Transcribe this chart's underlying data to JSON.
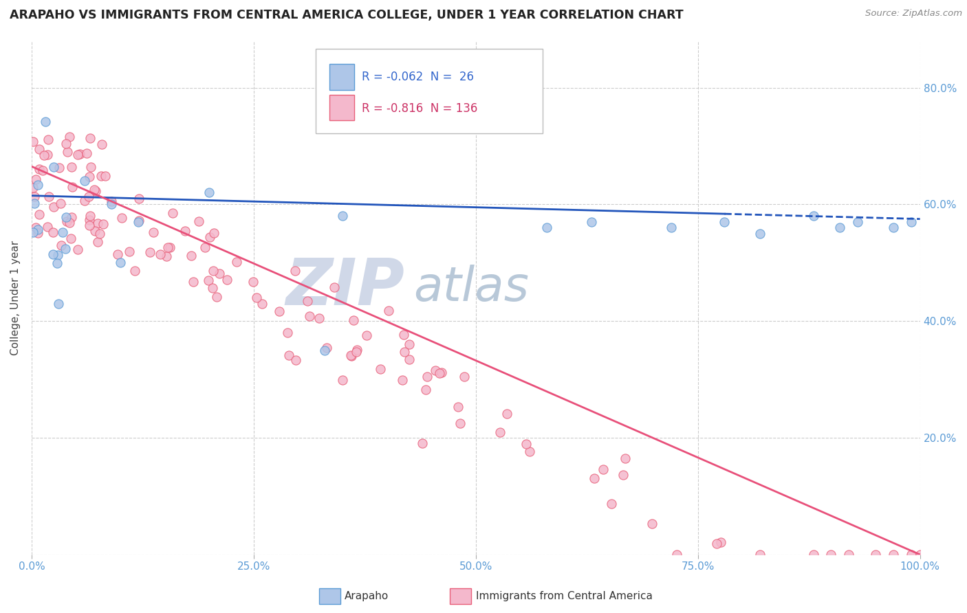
{
  "title": "ARAPAHO VS IMMIGRANTS FROM CENTRAL AMERICA COLLEGE, UNDER 1 YEAR CORRELATION CHART",
  "source": "Source: ZipAtlas.com",
  "ylabel": "College, Under 1 year",
  "xlim": [
    0.0,
    1.0
  ],
  "ylim": [
    0.0,
    0.88
  ],
  "x_ticks": [
    0.0,
    0.25,
    0.5,
    0.75,
    1.0
  ],
  "x_tick_labels": [
    "0.0%",
    "25.0%",
    "50.0%",
    "75.0%",
    "100.0%"
  ],
  "y_ticks": [
    0.0,
    0.2,
    0.4,
    0.6,
    0.8
  ],
  "y_tick_labels": [
    "",
    "20.0%",
    "40.0%",
    "60.0%",
    "80.0%"
  ],
  "arapaho_color": "#aec6e8",
  "arapaho_edge_color": "#5b9bd5",
  "immigrants_color": "#f4b8cc",
  "immigrants_edge_color": "#e8607a",
  "arapaho_line_color": "#2255bb",
  "immigrants_line_color": "#e8507a",
  "legend_label_arapaho": "Arapaho",
  "legend_label_immigrants": "Immigrants from Central America",
  "R_arapaho": -0.062,
  "N_arapaho": 26,
  "R_immigrants": -0.816,
  "N_immigrants": 136,
  "watermark_zip": "ZIP",
  "watermark_atlas": "atlas",
  "watermark_color_zip": "#d0d8e8",
  "watermark_color_atlas": "#b8c8d8",
  "background_color": "#ffffff",
  "grid_color": "#cccccc",
  "arapaho_seed": 42,
  "immigrants_seed": 99,
  "blue_line_solid_end": 0.78,
  "blue_line_start_y": 0.615,
  "blue_line_slope": -0.04,
  "pink_line_start_y": 0.665,
  "pink_line_end_y": 0.0,
  "pink_line_end_x": 1.0
}
